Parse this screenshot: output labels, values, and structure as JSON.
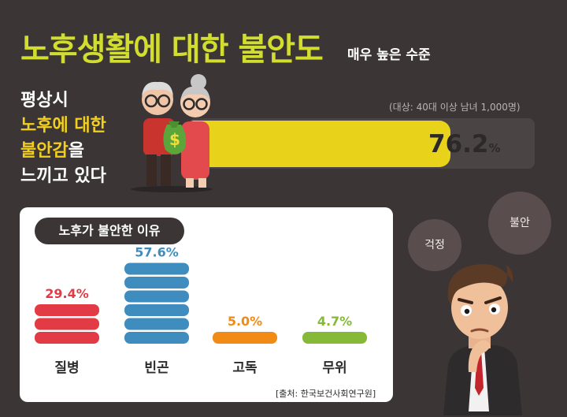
{
  "header": {
    "title": "노후생활에 대한 불안도",
    "subtitle": "매우 높은 수준"
  },
  "stat": {
    "line1": "평상시",
    "line2": "노후에 대한",
    "line3a": "불안감",
    "line3b": "을",
    "line4": "느끼고 있다",
    "note": "(대상: 40대 이상 남녀 1,000명)",
    "value": "76.2",
    "unit": "%"
  },
  "thoughts": {
    "bubble1": "걱정",
    "bubble2": "불안"
  },
  "chart_data": {
    "type": "bar",
    "title": "노후가 불안한 이유",
    "categories": [
      "질병",
      "빈곤",
      "고독",
      "무위"
    ],
    "values": [
      29.4,
      57.6,
      5.0,
      4.7
    ],
    "value_labels": [
      "29.4%",
      "57.6%",
      "5.0%",
      "4.7%"
    ],
    "colors": [
      "#e23b45",
      "#3f8dbf",
      "#f28a16",
      "#86b938"
    ],
    "source": "[출처: 한국보건사회연구원]"
  }
}
